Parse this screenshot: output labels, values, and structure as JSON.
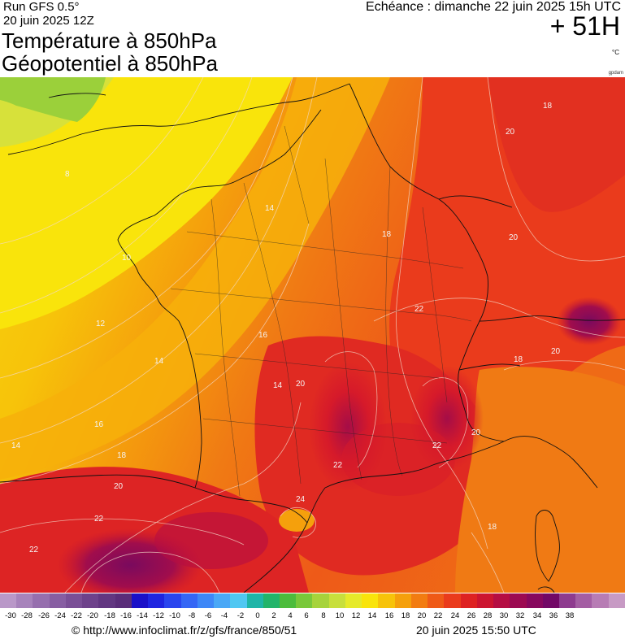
{
  "header": {
    "run": "Run GFS 0.5°",
    "run_date": "20 juin 2025 12Z",
    "title_line1": "Température à 850hPa",
    "title_line2": "Géopotentiel à 850hPa",
    "echeance": "Echéance : dimanche 22 juin 2025 15h UTC",
    "offset": "+ 51H",
    "unit": "°C",
    "map_tag": "gpdam"
  },
  "map": {
    "region": "France",
    "contour_labels": [
      "18",
      "20",
      "8",
      "14",
      "10",
      "12",
      "16",
      "18",
      "20",
      "14",
      "22",
      "20",
      "22",
      "18",
      "20",
      "22",
      "24",
      "22",
      "18",
      "14",
      "16",
      "18",
      "20",
      "22",
      "24",
      "22"
    ]
  },
  "legend": {
    "ticks": [
      "-30",
      "-28",
      "-26",
      "-24",
      "-22",
      "-20",
      "-18",
      "-16",
      "-14",
      "-12",
      "-10",
      "-8",
      "-6",
      "-4",
      "-2",
      "0",
      "2",
      "4",
      "6",
      "8",
      "10",
      "12",
      "14",
      "16",
      "18",
      "20",
      "22",
      "24",
      "26",
      "28",
      "30",
      "32",
      "34",
      "36",
      "38"
    ],
    "colors": [
      "#b998c8",
      "#a783bb",
      "#966fae",
      "#875ea2",
      "#7a4f96",
      "#6e428b",
      "#623781",
      "#5a2d79",
      "#1a10c8",
      "#1f25e0",
      "#2a45ee",
      "#3566f5",
      "#3e87f7",
      "#4aa8f6",
      "#50c7f2",
      "#1fb5a8",
      "#22b46a",
      "#4cbc3c",
      "#79c83a",
      "#a6d33b",
      "#c8df3c",
      "#e6ea2a",
      "#f9e40b",
      "#f7c30a",
      "#f5a00c",
      "#f27c11",
      "#ef5a17",
      "#ea3b1c",
      "#de2222",
      "#cc1530",
      "#b50e43",
      "#9c0a52",
      "#87085e",
      "#720866",
      "#8e3b8f",
      "#a45ea3",
      "#b77cb4",
      "#c79ac4"
    ],
    "labels": [
      "-30",
      "-28",
      "-26",
      "-24",
      "-22",
      "-20",
      "-18",
      "-16",
      "-14",
      "-12",
      "-10",
      "-8",
      "-6",
      "-4",
      "-2",
      "0",
      "2",
      "4",
      "6",
      "8",
      "10",
      "12",
      "14",
      "16",
      "18",
      "20",
      "22",
      "24",
      "26",
      "28",
      "30",
      "32",
      "34",
      "36",
      "38"
    ]
  },
  "footer": {
    "credit": "© http://www.infoclimat.fr/z/gfs/france/850/51",
    "timestamp": "20 juin 2025 15:50 UTC"
  }
}
